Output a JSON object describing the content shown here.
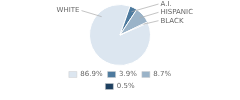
{
  "chart_data": {
    "type": "pie",
    "categories": [
      "WHITE",
      "A.I.",
      "HISPANIC",
      "BLACK"
    ],
    "values": [
      86.9,
      3.9,
      8.7,
      0.5
    ],
    "value_labels": [
      "86.9%",
      "3.9%",
      "8.7%",
      "0.5%"
    ],
    "colors": [
      "#dce6f0",
      "#4d7a9e",
      "#9ab3c8",
      "#1e4060"
    ],
    "legend": "bottom"
  }
}
